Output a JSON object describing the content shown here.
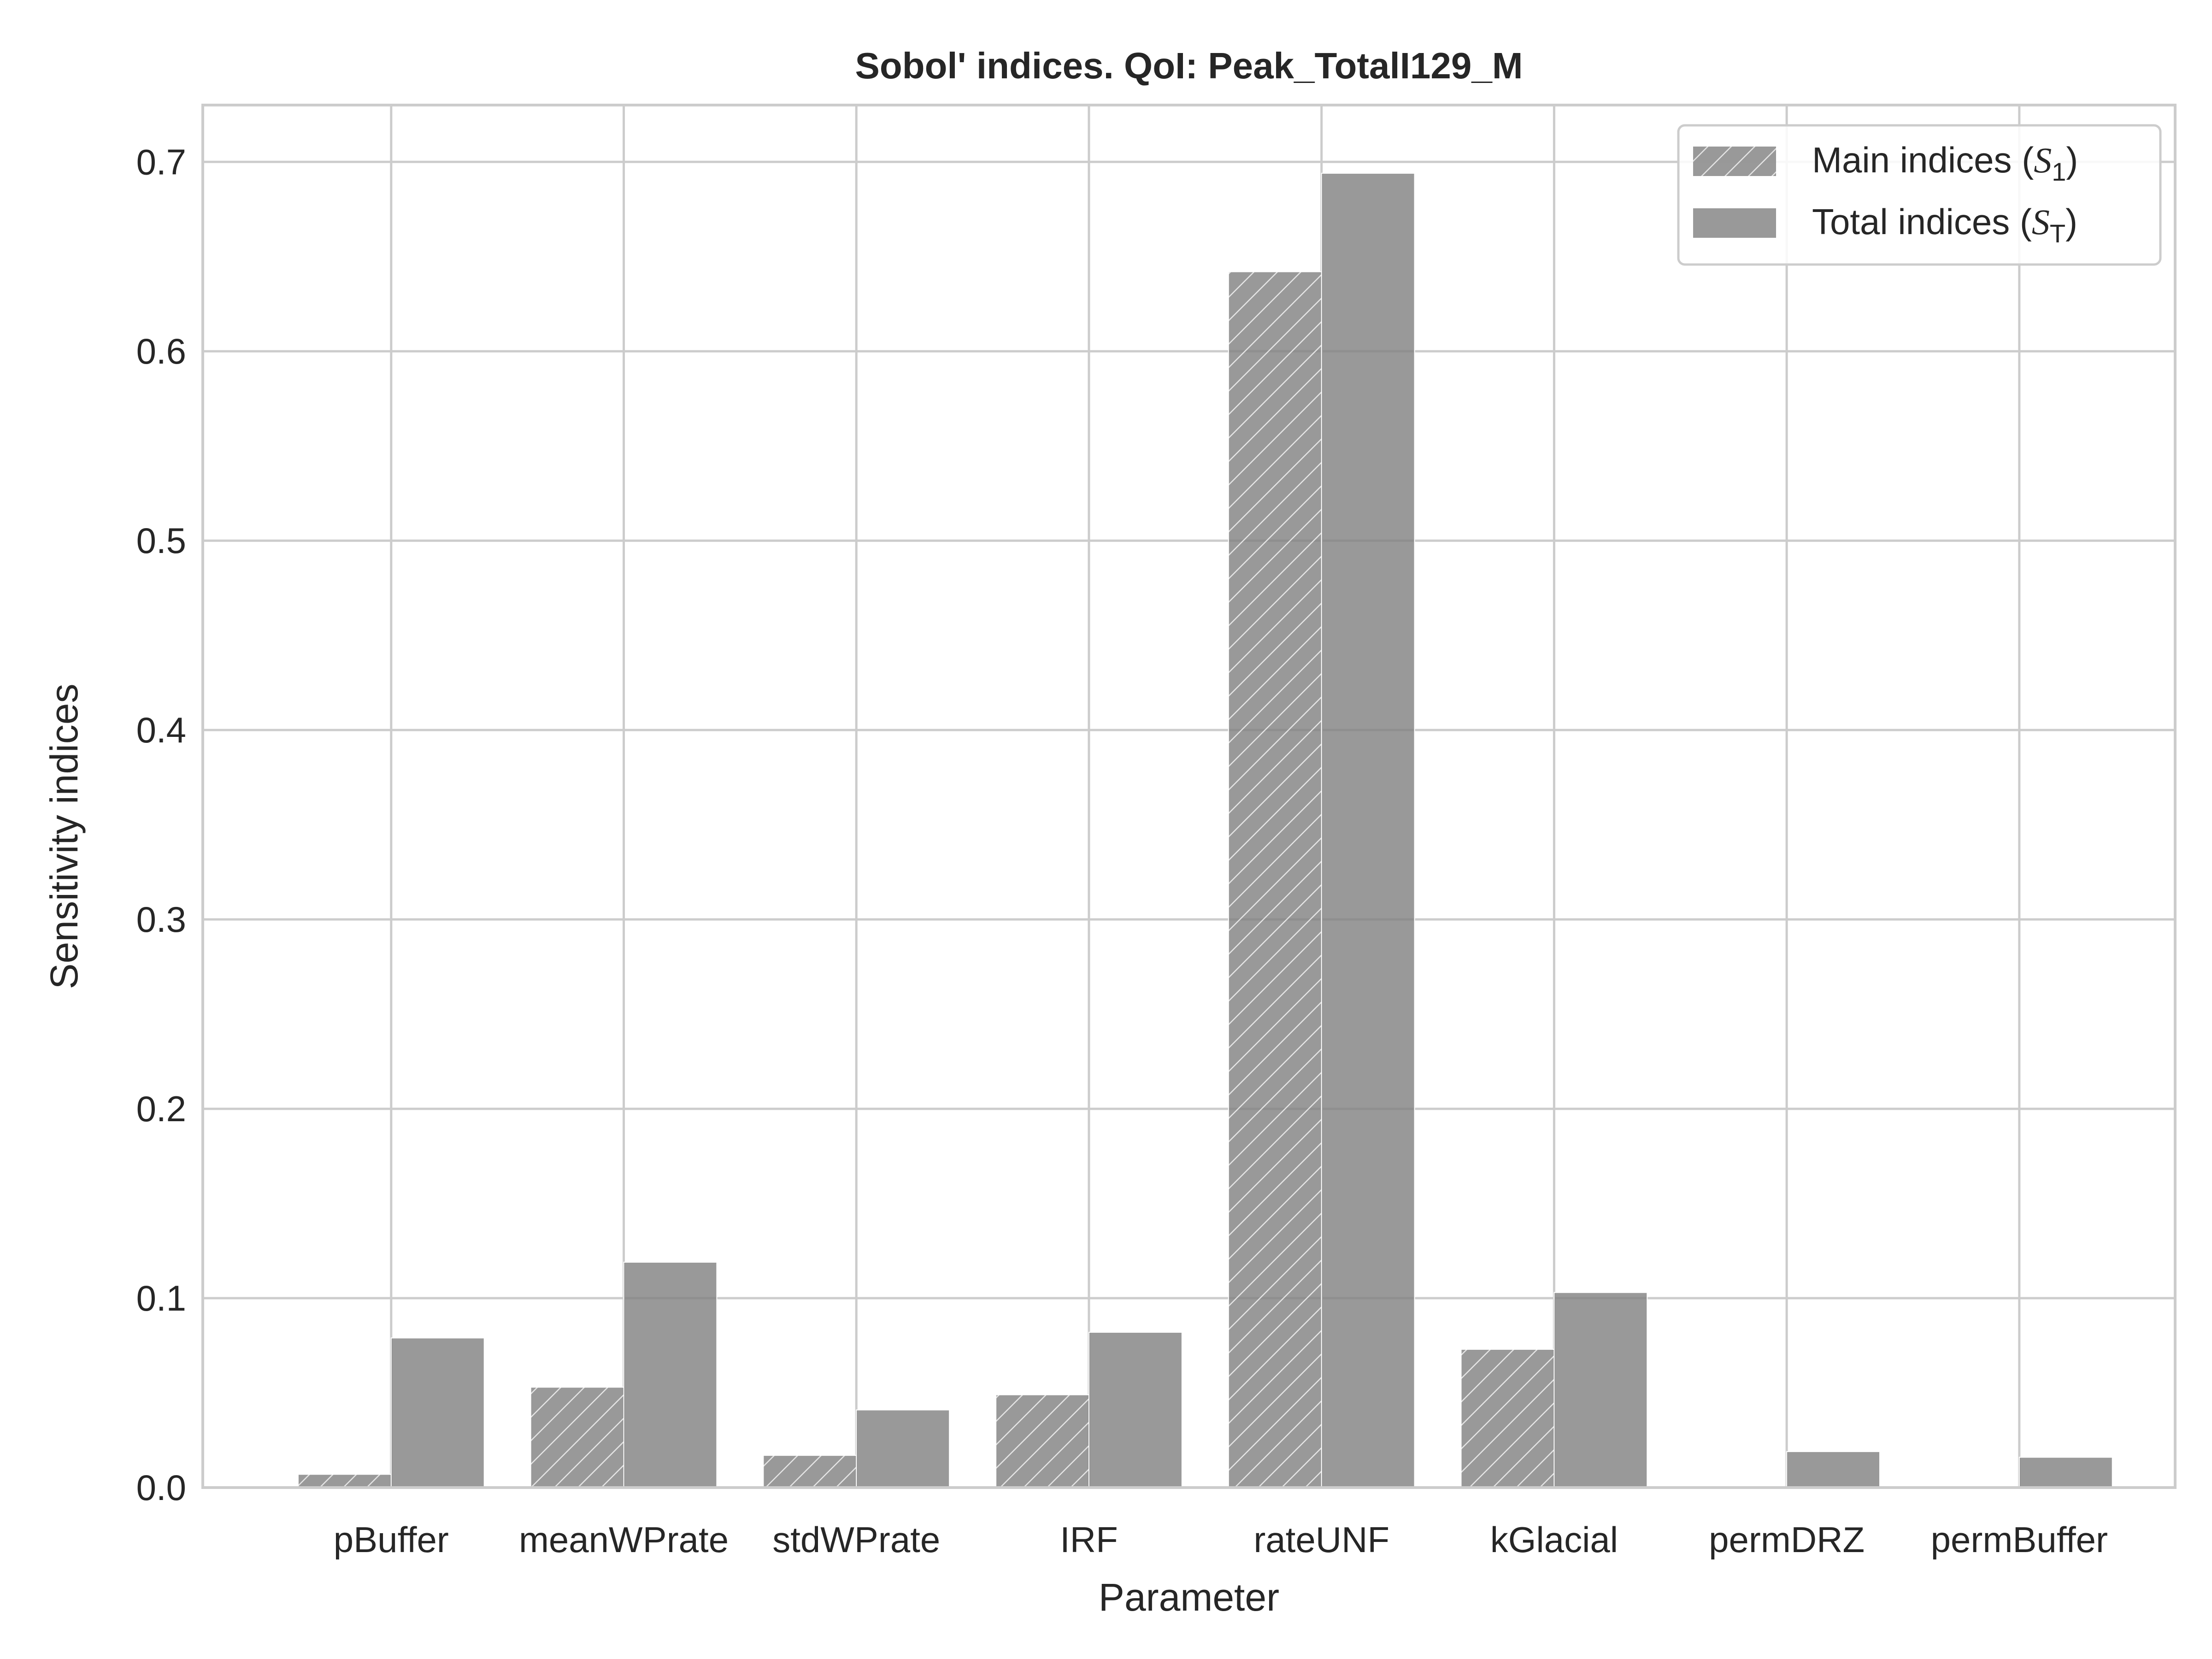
{
  "chart_data": {
    "type": "bar",
    "title": "Sobol' indices. QoI: Peak_TotalI129_M",
    "xlabel": "Parameter",
    "ylabel": "Sensitivity indices",
    "categories": [
      "pBuffer",
      "meanWPrate",
      "stdWPrate",
      "IRF",
      "rateUNF",
      "kGlacial",
      "permDRZ",
      "permBuffer"
    ],
    "series": [
      {
        "name": "Main indices",
        "symbol": "S",
        "subscript": "1",
        "hatched": true,
        "values": [
          0.007,
          0.053,
          0.017,
          0.049,
          0.642,
          0.073,
          0.0,
          0.0
        ]
      },
      {
        "name": "Total indices",
        "symbol": "S",
        "subscript": "T",
        "hatched": false,
        "values": [
          0.079,
          0.119,
          0.041,
          0.082,
          0.694,
          0.103,
          0.019,
          0.016
        ]
      }
    ],
    "ylim": [
      0,
      0.73
    ],
    "yticks": [
      "0.0",
      "0.1",
      "0.2",
      "0.3",
      "0.4",
      "0.5",
      "0.6",
      "0.7"
    ],
    "grid": true,
    "legend_position": "top-right",
    "bar_color": "#808080",
    "grid_color": "#cccccc"
  }
}
